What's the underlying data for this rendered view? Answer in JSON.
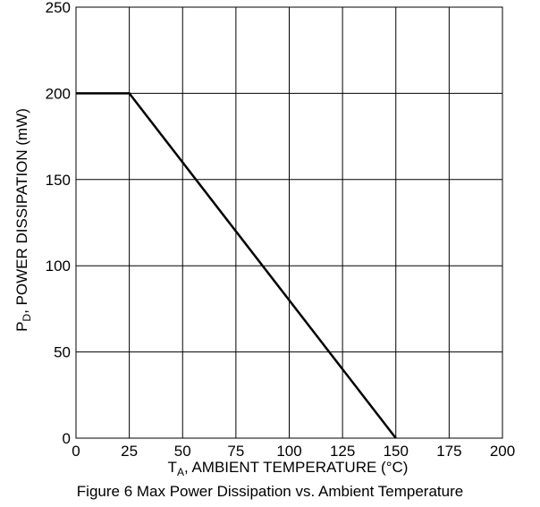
{
  "chart_data": {
    "type": "line",
    "caption": "Figure 6  Max Power Dissipation vs. Ambient Temperature",
    "xlabel": {
      "main": "T",
      "sub": "A",
      "rest": ", AMBIENT TEMPERATURE (°C)"
    },
    "ylabel": {
      "main": "P",
      "sub": "D",
      "rest": ", POWER DISSIPATION (mW)"
    },
    "xlim": [
      0,
      200
    ],
    "ylim": [
      0,
      250
    ],
    "xticks": [
      0,
      25,
      50,
      75,
      100,
      125,
      150,
      175,
      200
    ],
    "yticks": [
      0,
      50,
      100,
      150,
      200,
      250
    ],
    "grid": true,
    "series": [
      {
        "x": [
          0,
          25,
          150
        ],
        "y": [
          200,
          200,
          0
        ]
      }
    ]
  }
}
